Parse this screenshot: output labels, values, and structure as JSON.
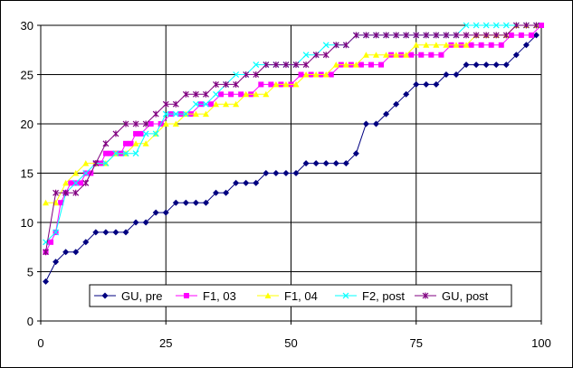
{
  "chart_data": {
    "type": "line",
    "title": "",
    "xlabel": "",
    "ylabel": "",
    "xlim": [
      0,
      100
    ],
    "ylim": [
      0,
      30
    ],
    "x_ticks": [
      "0",
      "25",
      "50",
      "75",
      "100"
    ],
    "y_ticks": [
      "0",
      "5",
      "10",
      "15",
      "20",
      "25",
      "30"
    ],
    "x_tick_values": [
      0,
      25,
      50,
      75,
      100
    ],
    "y_tick_values": [
      0,
      5,
      10,
      15,
      20,
      25,
      30
    ],
    "grid": "horizontal",
    "legend_position": "bottom-right",
    "series": [
      {
        "name": "GU, pre",
        "color": "#000080",
        "marker": "diamond",
        "x": [
          1,
          3,
          5,
          7,
          9,
          11,
          13,
          15,
          17,
          19,
          21,
          23,
          25,
          27,
          29,
          31,
          33,
          35,
          37,
          39,
          41,
          43,
          45,
          47,
          49,
          51,
          53,
          55,
          57,
          59,
          61,
          63,
          65,
          67,
          69,
          71,
          73,
          75,
          77,
          79,
          81,
          83,
          85,
          87,
          89,
          91,
          93,
          95,
          97,
          99
        ],
        "y": [
          4,
          6,
          7,
          7,
          8,
          9,
          9,
          9,
          9,
          10,
          10,
          11,
          11,
          12,
          12,
          12,
          12,
          13,
          13,
          14,
          14,
          14,
          15,
          15,
          15,
          15,
          16,
          16,
          16,
          16,
          16,
          17,
          20,
          20,
          21,
          22,
          23,
          24,
          24,
          24,
          25,
          25,
          26,
          26,
          26,
          26,
          26,
          27,
          28,
          29
        ]
      },
      {
        "name": "F1, 03",
        "color": "#ff00ff",
        "marker": "square",
        "x": [
          1,
          2,
          3,
          4,
          5,
          6,
          7,
          8,
          9,
          10,
          11,
          12,
          13,
          14,
          15,
          16,
          17,
          18,
          19,
          20,
          22,
          24,
          26,
          28,
          30,
          32,
          34,
          36,
          38,
          40,
          42,
          44,
          46,
          48,
          50,
          52,
          54,
          56,
          58,
          60,
          62,
          64,
          66,
          68,
          70,
          72,
          74,
          76,
          78,
          80,
          82,
          84,
          86,
          88,
          90,
          92,
          94,
          96,
          98,
          100
        ],
        "y": [
          7,
          8,
          9,
          12,
          13,
          14,
          14,
          14,
          15,
          15,
          16,
          16,
          17,
          17,
          17,
          17,
          18,
          18,
          19,
          19,
          20,
          20,
          21,
          21,
          21,
          22,
          22,
          23,
          23,
          23,
          23,
          24,
          24,
          24,
          24,
          25,
          25,
          25,
          25,
          26,
          26,
          26,
          26,
          26,
          27,
          27,
          27,
          27,
          27,
          27,
          28,
          28,
          28,
          28,
          28,
          28,
          29,
          29,
          29,
          30
        ]
      },
      {
        "name": "F1, 04",
        "color": "#ffff00",
        "marker": "triangle",
        "x": [
          1,
          3,
          5,
          7,
          9,
          11,
          13,
          15,
          17,
          19,
          21,
          23,
          25,
          27,
          29,
          31,
          33,
          35,
          37,
          39,
          41,
          43,
          45,
          47,
          49,
          51,
          53,
          55,
          57,
          59,
          61,
          63,
          65,
          67,
          69,
          71,
          73,
          75,
          77,
          79,
          81,
          83,
          85,
          87,
          89,
          91,
          93,
          95,
          97,
          99
        ],
        "y": [
          12,
          12,
          14,
          15,
          16,
          16,
          16,
          17,
          17,
          18,
          18,
          19,
          20,
          20,
          21,
          21,
          21,
          22,
          22,
          22,
          23,
          23,
          23,
          24,
          24,
          24,
          25,
          25,
          25,
          26,
          26,
          26,
          27,
          27,
          27,
          27,
          27,
          28,
          28,
          28,
          28,
          28,
          28,
          29,
          29,
          29,
          29,
          30,
          30,
          30
        ]
      },
      {
        "name": "F2, post",
        "color": "#00ffff",
        "marker": "x",
        "x": [
          1,
          3,
          5,
          7,
          9,
          11,
          13,
          15,
          17,
          19,
          21,
          23,
          25,
          27,
          29,
          31,
          33,
          35,
          37,
          39,
          41,
          43,
          45,
          47,
          49,
          51,
          53,
          55,
          57,
          59,
          61,
          63,
          65,
          67,
          69,
          71,
          73,
          75,
          77,
          79,
          81,
          83,
          85,
          87,
          89,
          91,
          93,
          95,
          97,
          99
        ],
        "y": [
          8,
          9,
          13,
          14,
          15,
          16,
          16,
          17,
          17,
          17,
          19,
          19,
          21,
          21,
          21,
          22,
          22,
          23,
          24,
          25,
          25,
          26,
          26,
          26,
          26,
          26,
          27,
          27,
          28,
          28,
          28,
          29,
          29,
          29,
          29,
          29,
          29,
          29,
          29,
          29,
          29,
          29,
          30,
          30,
          30,
          30,
          30,
          30,
          30,
          30
        ]
      },
      {
        "name": "GU, post",
        "color": "#800080",
        "marker": "star",
        "x": [
          1,
          3,
          5,
          7,
          9,
          11,
          13,
          15,
          17,
          19,
          21,
          23,
          25,
          27,
          29,
          31,
          33,
          35,
          37,
          39,
          41,
          43,
          45,
          47,
          49,
          51,
          53,
          55,
          57,
          59,
          61,
          63,
          65,
          67,
          69,
          71,
          73,
          75,
          77,
          79,
          81,
          83,
          85,
          87,
          89,
          91,
          93,
          95,
          97,
          99
        ],
        "y": [
          7,
          13,
          13,
          13,
          14,
          16,
          18,
          19,
          20,
          20,
          20,
          21,
          22,
          22,
          23,
          23,
          23,
          24,
          24,
          24,
          25,
          25,
          26,
          26,
          26,
          26,
          26,
          27,
          27,
          28,
          28,
          29,
          29,
          29,
          29,
          29,
          29,
          29,
          29,
          29,
          29,
          29,
          29,
          29,
          29,
          29,
          29,
          30,
          30,
          30
        ]
      }
    ]
  },
  "style": {
    "plot_background": "#ffffff",
    "grid_color": "#000000",
    "border_color": "#000000"
  }
}
